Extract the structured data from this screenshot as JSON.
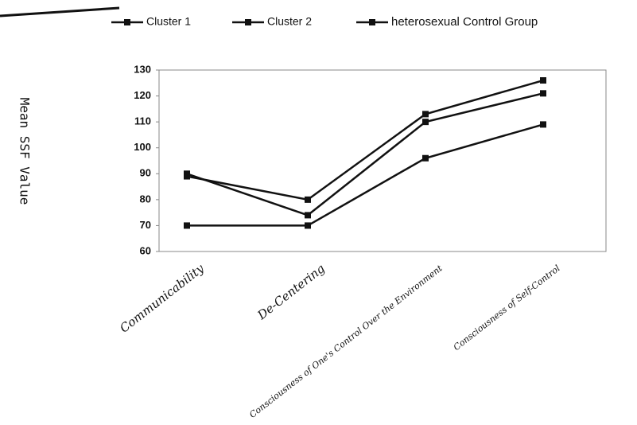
{
  "chart_data": {
    "type": "line",
    "y_label": "Mean SSF Value",
    "categories": [
      "Communicability",
      "De-Centering",
      "Consciousness of One's Control Over the Environment",
      "Consciousness of Self-Control"
    ],
    "series": [
      {
        "name": "Cluster 1",
        "color": "#111111",
        "values": [
          89,
          80,
          113,
          126
        ]
      },
      {
        "name": "Cluster 2",
        "color": "#111111",
        "values": [
          90,
          74,
          110,
          121
        ]
      },
      {
        "name": "heterosexual Control Group",
        "color": "#111111",
        "values": [
          70,
          70,
          96,
          109
        ]
      }
    ],
    "ylim": [
      60,
      130
    ],
    "yticks": [
      60,
      70,
      80,
      90,
      100,
      110,
      120,
      130
    ],
    "grid": false,
    "legend": "top"
  }
}
